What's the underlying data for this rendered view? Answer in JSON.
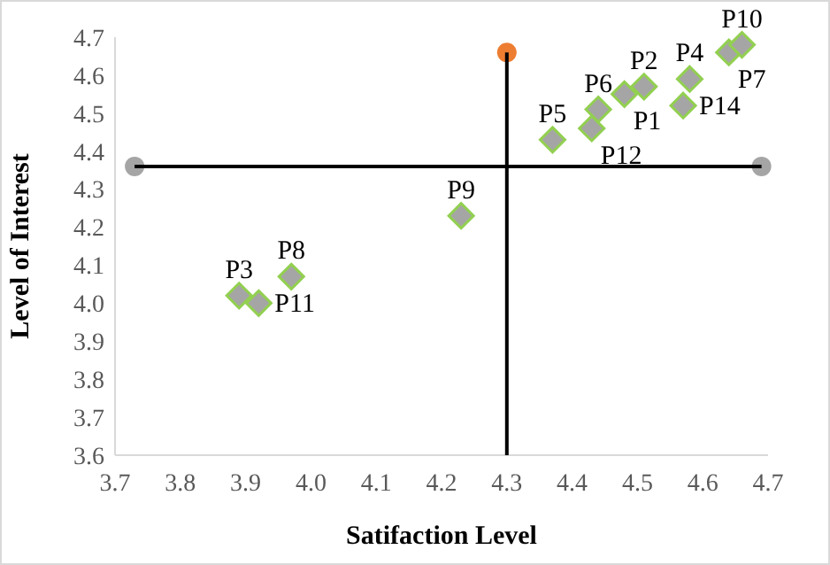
{
  "chart_data": {
    "type": "scatter",
    "xlabel": "Satifaction Level",
    "ylabel": "Level of Interest",
    "xlim": [
      3.7,
      4.7
    ],
    "xticks": [
      3.7,
      3.8,
      3.9,
      {
        "value": 4.0,
        "label": "4.0"
      },
      4.1,
      4.2,
      4.3,
      4.4,
      4.5,
      4.6,
      4.7
    ],
    "ylim": [
      3.6,
      4.7
    ],
    "yticks": [
      3.6,
      3.7,
      3.8,
      3.9,
      {
        "value": 4.0,
        "label": "4.0"
      },
      4.1,
      4.2,
      4.3,
      4.4,
      4.5,
      4.6,
      4.7
    ],
    "grid": false,
    "marker": "diamond",
    "series": [
      {
        "type": "scatter",
        "x": [
          3.73,
          4.69
        ],
        "values": [
          4.36,
          4.36
        ],
        "color": "#a5a5a5",
        "marker": "circle"
      },
      {
        "type": "scatter",
        "x": [
          4.3
        ],
        "values": [
          4.66
        ],
        "color": "#ed7d31",
        "marker": "circle"
      },
      {
        "type": "line",
        "x": [
          3.73,
          4.69
        ],
        "values": [
          4.36,
          4.36
        ],
        "color": "#000000",
        "marker": "none"
      },
      {
        "type": "line",
        "x": [
          4.3,
          4.3
        ],
        "values": [
          3.6,
          4.66
        ],
        "color": "#000000",
        "marker": "none"
      },
      {
        "name": "P1",
        "x": [
          4.48
        ],
        "values": [
          4.55
        ],
        "color": "#a5a5a5"
      },
      {
        "name": "P2",
        "x": [
          4.51
        ],
        "values": [
          4.57
        ],
        "color": "#a5a5a5"
      },
      {
        "name": "P3",
        "x": [
          3.89
        ],
        "values": [
          4.02
        ],
        "color": "#a5a5a5"
      },
      {
        "name": "P4",
        "x": [
          4.58
        ],
        "values": [
          4.59
        ],
        "color": "#a5a5a5"
      },
      {
        "name": "P5",
        "x": [
          4.37
        ],
        "values": [
          4.43
        ],
        "color": "#a5a5a5"
      },
      {
        "name": "P6",
        "x": [
          4.44
        ],
        "values": [
          4.51
        ],
        "color": "#a5a5a5"
      },
      {
        "name": "P7",
        "x": [
          4.64
        ],
        "values": [
          4.66
        ],
        "color": "#a5a5a5"
      },
      {
        "name": "P8",
        "x": [
          3.97
        ],
        "values": [
          4.07
        ],
        "color": "#a5a5a5"
      },
      {
        "name": "P9",
        "x": [
          4.23
        ],
        "values": [
          4.23
        ],
        "color": "#a5a5a5"
      },
      {
        "name": "P10",
        "x": [
          4.66
        ],
        "values": [
          4.68
        ],
        "color": "#a5a5a5"
      },
      {
        "name": "P11",
        "x": [
          3.92
        ],
        "values": [
          4.0
        ],
        "color": "#a5a5a5"
      },
      {
        "name": "P12",
        "x": [
          4.43
        ],
        "values": [
          4.46
        ],
        "color": "#a5a5a5"
      },
      {
        "name": "P14",
        "x": [
          4.57
        ],
        "values": [
          4.52
        ],
        "color": "#a5a5a5"
      }
    ]
  }
}
